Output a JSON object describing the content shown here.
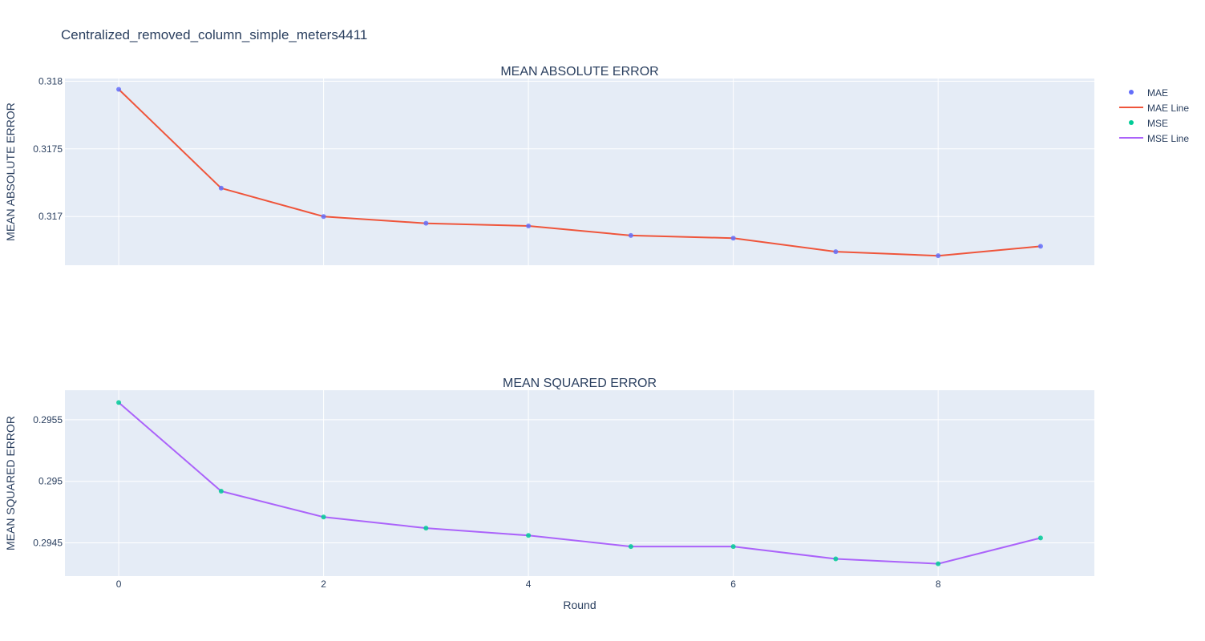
{
  "title": "Centralized_removed_column_simple_meters4411",
  "xaxis_title": "Round",
  "legend": [
    {
      "name": "MAE",
      "kind": "marker",
      "color": "#636efa"
    },
    {
      "name": "MAE Line",
      "kind": "line",
      "color": "#ef553b"
    },
    {
      "name": "MSE",
      "kind": "marker",
      "color": "#00cc96"
    },
    {
      "name": "MSE Line",
      "kind": "line",
      "color": "#ab63fa"
    }
  ],
  "chart_data": [
    {
      "type": "line",
      "title": "MEAN ABSOLUTE ERROR",
      "xlabel": "",
      "ylabel": "MEAN ABSOLUTE ERROR",
      "x": [
        0,
        1,
        2,
        3,
        4,
        5,
        6,
        7,
        8,
        9
      ],
      "xticks": [
        0,
        2,
        4,
        6,
        8
      ],
      "show_xtick_labels": false,
      "xlim": [
        -0.525,
        9.525
      ],
      "ylim": [
        0.31664,
        0.31802
      ],
      "yticks": [
        0.317,
        0.3175,
        0.318
      ],
      "ytick_labels": [
        "0.317",
        "0.3175",
        "0.318"
      ],
      "series": [
        {
          "name": "MAE",
          "mode": "markers",
          "color": "#636efa",
          "values": [
            0.31794,
            0.31721,
            0.317,
            0.31695,
            0.31693,
            0.31686,
            0.31684,
            0.31674,
            0.31671,
            0.31678
          ]
        },
        {
          "name": "MAE Line",
          "mode": "lines",
          "color": "#ef553b",
          "values": [
            0.31794,
            0.31721,
            0.317,
            0.31695,
            0.31693,
            0.31686,
            0.31684,
            0.31674,
            0.31671,
            0.31678
          ]
        }
      ]
    },
    {
      "type": "line",
      "title": "MEAN SQUARED ERROR",
      "xlabel": "Round",
      "ylabel": "MEAN SQUARED ERROR",
      "x": [
        0,
        1,
        2,
        3,
        4,
        5,
        6,
        7,
        8,
        9
      ],
      "xticks": [
        0,
        2,
        4,
        6,
        8
      ],
      "show_xtick_labels": true,
      "xlim": [
        -0.525,
        9.525
      ],
      "ylim": [
        0.29423,
        0.29574
      ],
      "yticks": [
        0.2945,
        0.295,
        0.2955
      ],
      "ytick_labels": [
        "0.2945",
        "0.295",
        "0.2955"
      ],
      "series": [
        {
          "name": "MSE",
          "mode": "markers",
          "color": "#00cc96",
          "values": [
            0.29564,
            0.29492,
            0.29471,
            0.29462,
            0.29456,
            0.29447,
            0.29447,
            0.29437,
            0.29433,
            0.29454
          ]
        },
        {
          "name": "MSE Line",
          "mode": "lines",
          "color": "#ab63fa",
          "values": [
            0.29564,
            0.29492,
            0.29471,
            0.29462,
            0.29456,
            0.29447,
            0.29447,
            0.29437,
            0.29433,
            0.29454
          ]
        }
      ]
    }
  ]
}
